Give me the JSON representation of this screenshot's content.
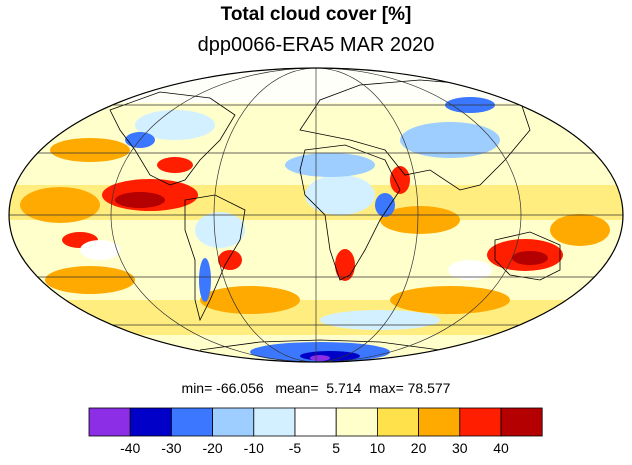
{
  "title": "Total cloud cover [%]",
  "subtitle": "dpp0066-ERA5 MAR 2020",
  "stats": {
    "min_label": "min=",
    "min": "-66.056",
    "mean_label": "mean=",
    "mean": "5.714",
    "max_label": "max=",
    "max": "78.577"
  },
  "colorbar": {
    "colors": [
      "#8c2ee6",
      "#0000c8",
      "#3c78ff",
      "#9ecdff",
      "#d2f0ff",
      "#ffffff",
      "#ffffcc",
      "#ffe14b",
      "#ffaa00",
      "#ff1e00",
      "#b40000"
    ],
    "tick_labels": [
      "-40",
      "-30",
      "-20",
      "-10",
      "-5",
      "5",
      "10",
      "20",
      "30",
      "40"
    ]
  },
  "map": {
    "projection": "Mollweide",
    "grid": true
  }
}
